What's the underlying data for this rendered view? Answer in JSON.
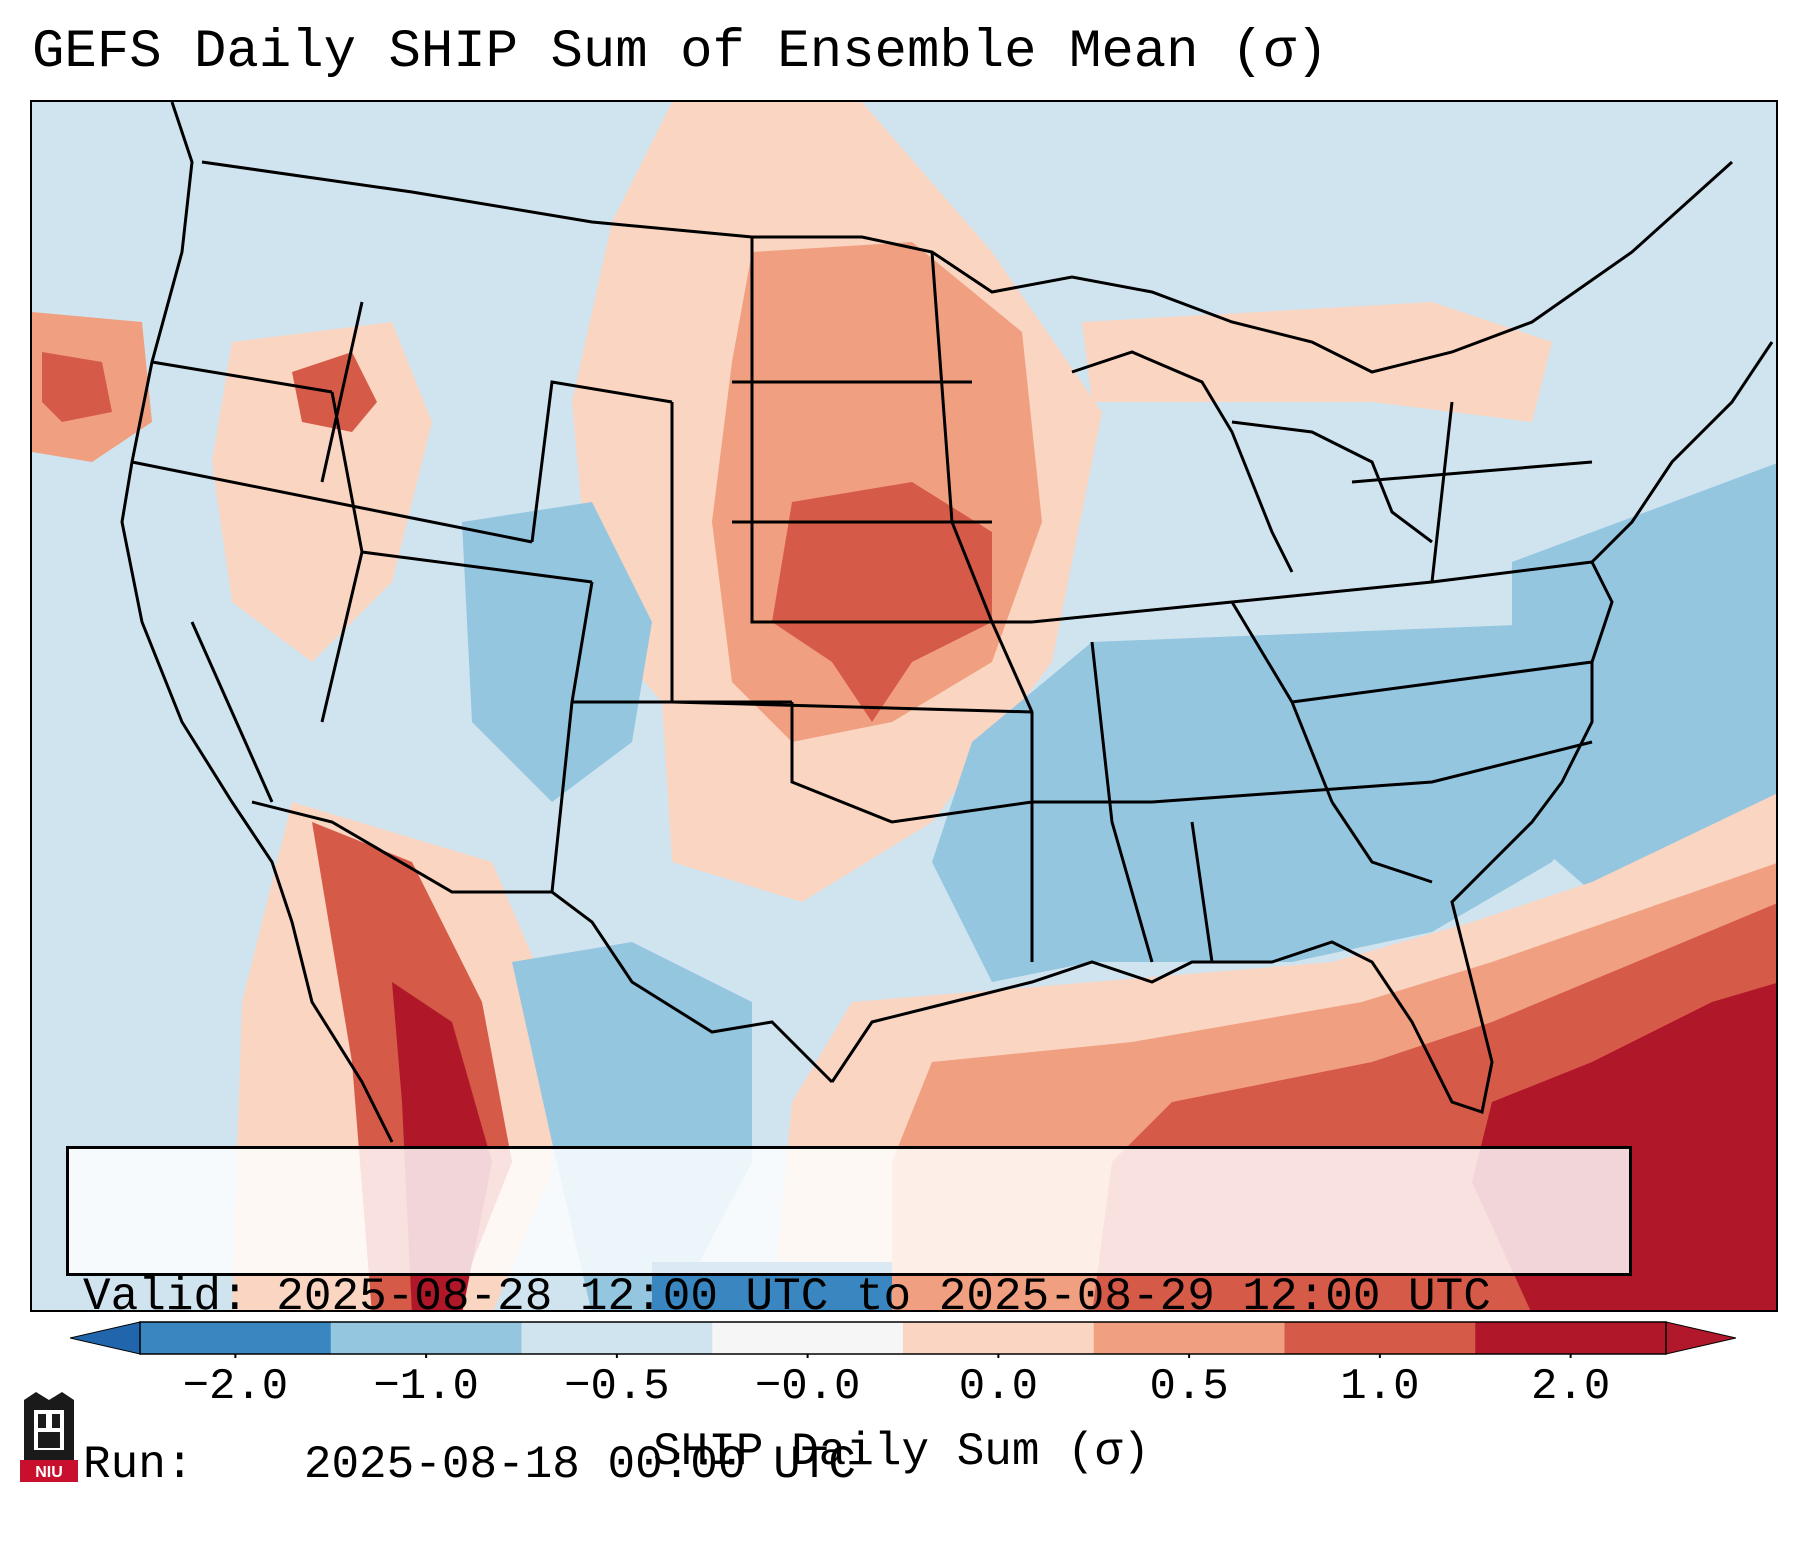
{
  "title": "GEFS Daily SHIP Sum of Ensemble Mean (σ)",
  "info": {
    "valid_label": "Valid:",
    "valid_value": "2025-08-28 12:00 UTC to 2025-08-29 12:00 UTC",
    "run_label": "Run:",
    "run_value": "2025-08-18 00:00 UTC"
  },
  "colorbar": {
    "label": "SHIP Daily Sum (σ)",
    "ticks": [
      "−2.0",
      "−1.0",
      "−0.5",
      "−0.0",
      "0.0",
      "0.5",
      "1.0",
      "2.0"
    ],
    "bin_colors": [
      "#3a86c0",
      "#94c6e0",
      "#d0e4f0",
      "#f6f6f6",
      "#f9d5c2",
      "#f0a080",
      "#d65a48",
      "#b0182a"
    ],
    "extend_min_color": "#2166ac",
    "extend_max_color": "#b2182b"
  },
  "map": {
    "region": "Contiguous United States, northern Mexico, Gulf of Mexico, Caribbean",
    "background_color": "#d0e4f0",
    "anomaly_regions": [
      {
        "name": "northern-plains-positive",
        "level": "0.5 to 1.0"
      },
      {
        "name": "nebraska-kansas-maximum",
        "level": "1.0 to 2.0"
      },
      {
        "name": "oregon-idaho-positive",
        "level": "1.0 to 2.0"
      },
      {
        "name": "southeast-negative",
        "level": "-1.0 to -0.5"
      },
      {
        "name": "atlantic-negative",
        "level": "-1.0 to -0.5"
      },
      {
        "name": "gulf-caribbean-positive",
        "level": "1.0 to 2.0"
      },
      {
        "name": "sierra-madre-positive",
        "level": "1.0 to 2.0"
      }
    ]
  },
  "logo": {
    "text": "NIU"
  }
}
